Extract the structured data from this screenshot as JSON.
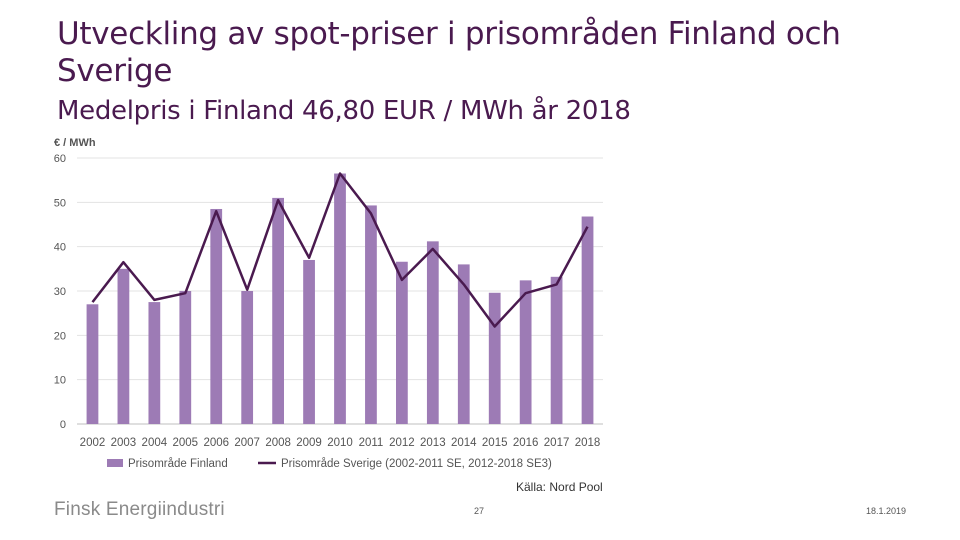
{
  "slide": {
    "title": "Utveckling av spot-priser i prisområden Finland och Sverige",
    "subtitle": "Medelpris i Finland 46,80 EUR / MWh år 2018",
    "source": "Källa: Nord Pool",
    "brand": "Finsk Energiindustri",
    "page_number": "27",
    "date": "18.1.2019"
  },
  "chart_data": {
    "type": "bar",
    "ylabel": "€ / MWh",
    "ylim": [
      0,
      60
    ],
    "yticks": [
      0,
      10,
      20,
      30,
      40,
      50,
      60
    ],
    "grid": true,
    "legend_position": "bottom",
    "categories": [
      "2002",
      "2003",
      "2004",
      "2005",
      "2006",
      "2007",
      "2008",
      "2009",
      "2010",
      "2011",
      "2012",
      "2013",
      "2014",
      "2015",
      "2016",
      "2017",
      "2018"
    ],
    "series": [
      {
        "name": "Prisområde Finland",
        "type": "bar",
        "color": "#9d7bb5",
        "values": [
          27,
          35,
          27.5,
          30,
          48.5,
          30,
          51,
          37,
          56.5,
          49.3,
          36.6,
          41.2,
          36.0,
          29.6,
          32.4,
          33.2,
          46.8
        ]
      },
      {
        "name": "Prisområde Sverige (2002-2011 SE, 2012-2018 SE3)",
        "type": "line",
        "color": "#4a1a4f",
        "values": [
          27.5,
          36.5,
          28,
          29.5,
          48,
          30.3,
          50.5,
          37.5,
          56.5,
          47.5,
          32.5,
          39.5,
          31.5,
          22,
          29.5,
          31.5,
          44.5
        ]
      }
    ]
  }
}
